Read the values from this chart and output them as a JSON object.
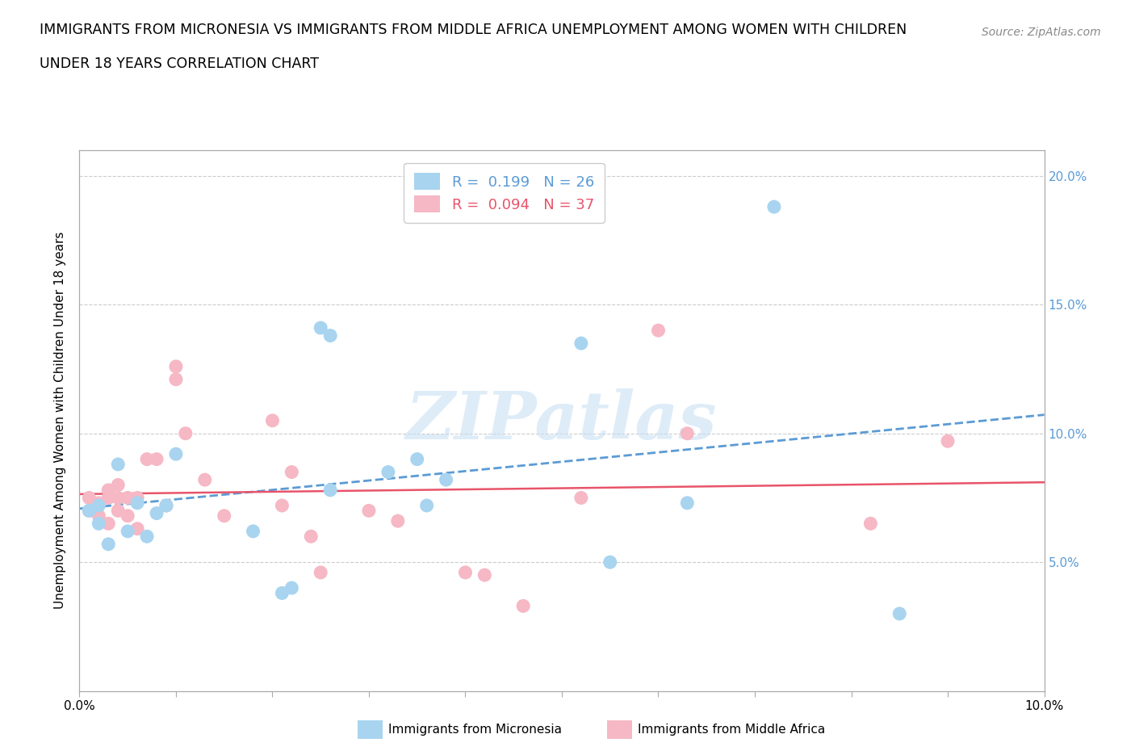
{
  "title_line1": "IMMIGRANTS FROM MICRONESIA VS IMMIGRANTS FROM MIDDLE AFRICA UNEMPLOYMENT AMONG WOMEN WITH CHILDREN",
  "title_line2": "UNDER 18 YEARS CORRELATION CHART",
  "source": "Source: ZipAtlas.com",
  "ylabel": "Unemployment Among Women with Children Under 18 years",
  "xlim": [
    0.0,
    0.1
  ],
  "ylim": [
    0.0,
    0.21
  ],
  "yticks": [
    0.0,
    0.05,
    0.1,
    0.15,
    0.2
  ],
  "ytick_labels_right": [
    "",
    "5.0%",
    "10.0%",
    "15.0%",
    "20.0%"
  ],
  "xtick_positions": [
    0.0,
    0.01,
    0.02,
    0.03,
    0.04,
    0.05,
    0.06,
    0.07,
    0.08,
    0.09,
    0.1
  ],
  "xtick_labels": [
    "0.0%",
    "",
    "",
    "",
    "",
    "",
    "",
    "",
    "",
    "",
    "10.0%"
  ],
  "micronesia_color": "#a8d4f0",
  "middle_africa_color": "#f5b8c4",
  "micronesia_line_color": "#5b9bd5",
  "middle_africa_line_color": "#e8546a",
  "R_micronesia": "0.199",
  "N_micronesia": "26",
  "R_middle_africa": "0.094",
  "N_middle_africa": "37",
  "watermark_text": "ZIPatlas",
  "legend_label_micro": "Immigrants from Micronesia",
  "legend_label_africa": "Immigrants from Middle Africa",
  "micronesia_x": [
    0.001,
    0.002,
    0.002,
    0.003,
    0.004,
    0.005,
    0.006,
    0.007,
    0.008,
    0.009,
    0.01,
    0.018,
    0.021,
    0.022,
    0.025,
    0.026,
    0.026,
    0.032,
    0.035,
    0.036,
    0.038,
    0.052,
    0.055,
    0.063,
    0.072,
    0.085
  ],
  "micronesia_y": [
    0.07,
    0.072,
    0.065,
    0.057,
    0.088,
    0.062,
    0.073,
    0.06,
    0.069,
    0.072,
    0.092,
    0.062,
    0.038,
    0.04,
    0.141,
    0.138,
    0.078,
    0.085,
    0.09,
    0.072,
    0.082,
    0.135,
    0.05,
    0.073,
    0.188,
    0.03
  ],
  "middle_africa_x": [
    0.001,
    0.001,
    0.002,
    0.002,
    0.003,
    0.003,
    0.003,
    0.004,
    0.004,
    0.004,
    0.005,
    0.005,
    0.006,
    0.006,
    0.007,
    0.008,
    0.009,
    0.01,
    0.01,
    0.011,
    0.013,
    0.015,
    0.02,
    0.021,
    0.022,
    0.024,
    0.025,
    0.03,
    0.033,
    0.04,
    0.042,
    0.046,
    0.052,
    0.06,
    0.063,
    0.082,
    0.09
  ],
  "middle_africa_y": [
    0.07,
    0.075,
    0.068,
    0.073,
    0.075,
    0.078,
    0.065,
    0.08,
    0.075,
    0.07,
    0.075,
    0.068,
    0.075,
    0.063,
    0.09,
    0.09,
    0.072,
    0.121,
    0.126,
    0.1,
    0.082,
    0.068,
    0.105,
    0.072,
    0.085,
    0.06,
    0.046,
    0.07,
    0.066,
    0.046,
    0.045,
    0.033,
    0.075,
    0.14,
    0.1,
    0.065,
    0.097
  ]
}
